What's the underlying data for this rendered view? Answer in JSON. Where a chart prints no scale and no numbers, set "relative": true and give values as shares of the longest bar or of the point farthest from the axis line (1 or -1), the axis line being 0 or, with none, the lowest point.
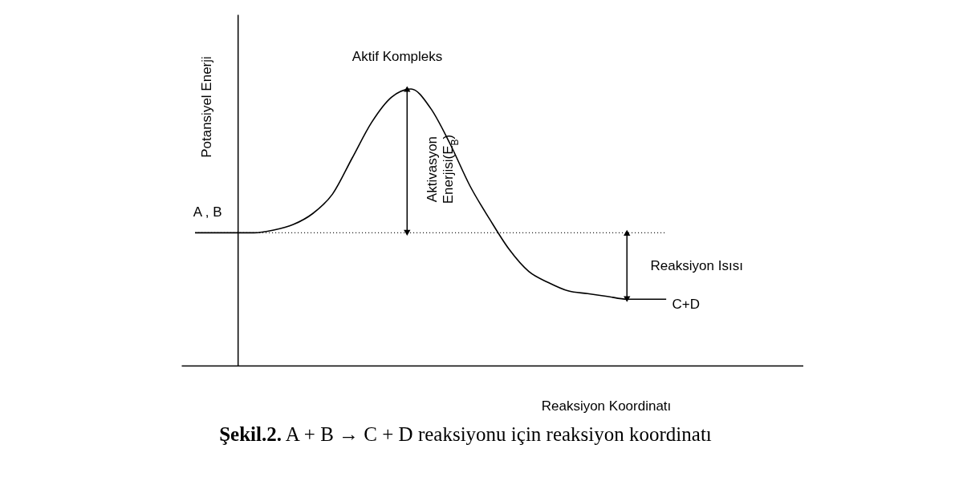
{
  "chart_data": {
    "type": "line",
    "relative": true,
    "xlabel": "Reaksiyon Koordinatı",
    "ylabel": "Potansiyel Enerji",
    "categories": [
      null,
      null,
      null,
      null,
      null,
      null,
      null,
      null,
      null,
      null,
      null,
      null,
      null,
      null,
      null,
      null,
      null,
      null,
      null,
      null,
      null,
      null,
      null,
      null,
      null
    ],
    "series": [
      {
        "color": "#000000",
        "values": [
          0.48,
          0.48,
          0.48,
          0.48,
          0.49,
          0.51,
          0.55,
          0.62,
          0.75,
          0.88,
          0.97,
          1,
          0.93,
          0.8,
          0.65,
          0.53,
          0.42,
          0.34,
          0.3,
          0.27,
          0.26,
          0.25,
          0.24,
          0.24,
          0.24
        ]
      }
    ],
    "ref_lines": [
      {
        "axis": "y",
        "value": 0.48,
        "color": "#000000",
        "line_style": "dotted"
      }
    ],
    "annotations": [
      "Aktif Kompleks",
      "A , B",
      "Aktivasyon Enerjisi(E$_{B}$)",
      "Reaksiyon Isısı",
      "C+D",
      "Şekil.2. A + B → C + D reaksiyonu için reaksiyon koordinatı"
    ],
    "grid": false,
    "marker": "none",
    "line_style": "solid"
  }
}
